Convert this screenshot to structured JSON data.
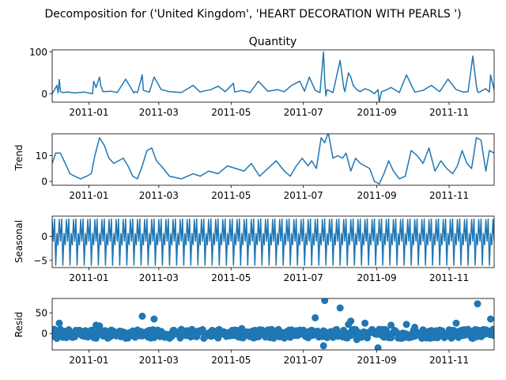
{
  "figure": {
    "suptitle": "Decomposition for ('United Kingdom', 'HEART DECORATION WITH PEARLS ')"
  },
  "colors": {
    "line": "#1f77b4",
    "marker": "#1f77b4",
    "zero_line": "#000000",
    "axes": "#000000",
    "background": "#ffffff"
  },
  "chart_data": [
    {
      "type": "line",
      "title": "Quantity",
      "ylabel": "",
      "xlim": [
        "2010-12-01",
        "2011-12-09"
      ],
      "ylim": [
        -20,
        105
      ],
      "yticks": [
        0,
        100
      ],
      "ytick_labels": [
        "0",
        "100"
      ],
      "xticks": [
        "2011-01-01",
        "2011-03-01",
        "2011-05-01",
        "2011-07-01",
        "2011-09-01",
        "2011-11-01"
      ],
      "xtick_labels": [
        "2011-01",
        "2011-03",
        "2011-05",
        "2011-07",
        "2011-09",
        "2011-11"
      ],
      "grid": false,
      "series": [
        {
          "x": [
            "2010-12-01",
            "2010-12-03",
            "2010-12-05",
            "2010-12-06",
            "2010-12-07",
            "2010-12-08",
            "2010-12-10",
            "2010-12-14",
            "2010-12-20",
            "2010-12-28",
            "2011-01-04",
            "2011-01-05",
            "2011-01-07",
            "2011-01-10",
            "2011-01-11",
            "2011-01-13",
            "2011-01-20",
            "2011-01-25",
            "2011-02-01",
            "2011-02-08",
            "2011-02-09",
            "2011-02-11",
            "2011-02-15",
            "2011-02-16",
            "2011-02-21",
            "2011-02-25",
            "2011-03-03",
            "2011-03-10",
            "2011-03-20",
            "2011-03-30",
            "2011-04-05",
            "2011-04-07",
            "2011-04-14",
            "2011-04-20",
            "2011-04-26",
            "2011-05-03",
            "2011-05-04",
            "2011-05-10",
            "2011-05-17",
            "2011-05-24",
            "2011-06-01",
            "2011-06-09",
            "2011-06-15",
            "2011-06-21",
            "2011-06-28",
            "2011-07-02",
            "2011-07-06",
            "2011-07-11",
            "2011-07-15",
            "2011-07-18",
            "2011-07-19",
            "2011-07-20",
            "2011-07-21",
            "2011-07-26",
            "2011-08-01",
            "2011-08-04",
            "2011-08-05",
            "2011-08-08",
            "2011-08-10",
            "2011-08-12",
            "2011-08-15",
            "2011-08-18",
            "2011-08-22",
            "2011-08-26",
            "2011-08-30",
            "2011-09-02",
            "2011-09-03",
            "2011-09-05",
            "2011-09-08",
            "2011-09-13",
            "2011-09-20",
            "2011-09-26",
            "2011-10-03",
            "2011-10-10",
            "2011-10-17",
            "2011-10-24",
            "2011-10-31",
            "2011-11-07",
            "2011-11-13",
            "2011-11-17",
            "2011-11-21",
            "2011-11-24",
            "2011-11-25",
            "2011-11-26",
            "2011-11-29",
            "2011-12-02",
            "2011-12-05",
            "2011-12-06",
            "2011-12-09"
          ],
          "y": [
            0,
            10,
            20,
            2,
            34,
            5,
            3,
            4,
            2,
            4,
            0,
            30,
            15,
            40,
            20,
            5,
            6,
            3,
            35,
            2,
            5,
            3,
            45,
            8,
            4,
            40,
            10,
            5,
            3,
            20,
            4,
            6,
            10,
            18,
            5,
            25,
            4,
            8,
            3,
            30,
            6,
            10,
            5,
            20,
            30,
            6,
            40,
            8,
            3,
            100,
            30,
            -5,
            10,
            3,
            80,
            15,
            5,
            50,
            40,
            20,
            10,
            5,
            12,
            8,
            0,
            10,
            -20,
            5,
            8,
            15,
            3,
            45,
            4,
            8,
            20,
            5,
            35,
            10,
            4,
            5,
            90,
            20,
            5,
            3,
            8,
            12,
            4,
            45,
            10
          ]
        }
      ]
    },
    {
      "type": "line",
      "title": "",
      "ylabel": "Trend",
      "xlim": [
        "2010-12-01",
        "2011-12-09"
      ],
      "ylim": [
        -1.5,
        18.5
      ],
      "yticks": [
        0,
        10
      ],
      "ytick_labels": [
        "0",
        "10"
      ],
      "xticks": [
        "2011-01-01",
        "2011-03-01",
        "2011-05-01",
        "2011-07-01",
        "2011-09-01",
        "2011-11-01"
      ],
      "xtick_labels": [
        "2011-01",
        "2011-03",
        "2011-05",
        "2011-07",
        "2011-09",
        "2011-11"
      ],
      "grid": false,
      "series": [
        {
          "x": [
            "2010-12-01",
            "2010-12-04",
            "2010-12-08",
            "2010-12-12",
            "2010-12-16",
            "2010-12-20",
            "2010-12-25",
            "2010-12-30",
            "2011-01-03",
            "2011-01-06",
            "2011-01-10",
            "2011-01-14",
            "2011-01-18",
            "2011-01-22",
            "2011-01-26",
            "2011-01-30",
            "2011-02-03",
            "2011-02-07",
            "2011-02-11",
            "2011-02-15",
            "2011-02-19",
            "2011-02-23",
            "2011-02-27",
            "2011-03-03",
            "2011-03-10",
            "2011-03-20",
            "2011-03-30",
            "2011-04-05",
            "2011-04-12",
            "2011-04-20",
            "2011-04-28",
            "2011-05-05",
            "2011-05-12",
            "2011-05-18",
            "2011-05-25",
            "2011-06-01",
            "2011-06-08",
            "2011-06-15",
            "2011-06-20",
            "2011-06-25",
            "2011-06-30",
            "2011-07-05",
            "2011-07-08",
            "2011-07-12",
            "2011-07-16",
            "2011-07-19",
            "2011-07-22",
            "2011-07-26",
            "2011-07-30",
            "2011-08-03",
            "2011-08-06",
            "2011-08-10",
            "2011-08-14",
            "2011-08-18",
            "2011-08-22",
            "2011-08-26",
            "2011-08-30",
            "2011-09-03",
            "2011-09-07",
            "2011-09-11",
            "2011-09-15",
            "2011-09-20",
            "2011-09-25",
            "2011-09-30",
            "2011-10-05",
            "2011-10-10",
            "2011-10-15",
            "2011-10-20",
            "2011-10-25",
            "2011-10-30",
            "2011-11-04",
            "2011-11-08",
            "2011-11-12",
            "2011-11-16",
            "2011-11-20",
            "2011-11-24",
            "2011-11-28",
            "2011-12-02",
            "2011-12-05",
            "2011-12-09"
          ],
          "y": [
            7,
            11,
            11,
            7,
            3,
            2,
            1,
            2,
            3,
            10,
            17,
            14,
            9,
            7,
            8,
            9,
            6,
            2,
            1,
            6,
            12,
            13,
            8,
            6,
            2,
            1,
            3,
            2,
            4,
            3,
            6,
            5,
            4,
            7,
            2,
            5,
            8,
            4,
            2,
            6,
            9,
            6,
            8,
            5,
            17,
            15,
            19,
            9,
            10,
            9,
            11,
            4,
            9,
            7,
            6,
            5,
            0,
            -1,
            3,
            8,
            4,
            1,
            2,
            12,
            10,
            7,
            13,
            4,
            8,
            5,
            3,
            6,
            12,
            7,
            5,
            17,
            16,
            4,
            12,
            11
          ]
        }
      ]
    },
    {
      "type": "line",
      "title": "",
      "ylabel": "Seasonal",
      "xlim": [
        "2010-12-01",
        "2011-12-09"
      ],
      "ylim": [
        -6.5,
        4.2
      ],
      "yticks": [
        -5,
        0
      ],
      "ytick_labels": [
        "−5",
        "0"
      ],
      "xticks": [
        "2011-01-01",
        "2011-03-01",
        "2011-05-01",
        "2011-07-01",
        "2011-09-01",
        "2011-11-01"
      ],
      "xtick_labels": [
        "2011-01",
        "2011-03",
        "2011-05",
        "2011-07",
        "2011-09",
        "2011-11"
      ],
      "grid": false,
      "period_days": 6,
      "pattern": [
        3.5,
        -1,
        3.6,
        -6,
        0.6,
        -1.8
      ]
    },
    {
      "type": "scatter",
      "title": "",
      "ylabel": "Resid",
      "xlim": [
        "2010-12-01",
        "2011-12-09"
      ],
      "ylim": [
        -40,
        85
      ],
      "yticks": [
        0,
        50
      ],
      "ytick_labels": [
        "0",
        "50"
      ],
      "xticks": [
        "2011-01-01",
        "2011-03-01",
        "2011-05-01",
        "2011-07-01",
        "2011-09-01",
        "2011-11-01"
      ],
      "xtick_labels": [
        "2011-01",
        "2011-03",
        "2011-05",
        "2011-07",
        "2011-09",
        "2011-11"
      ],
      "grid": false,
      "zero_line": true,
      "series": [
        {
          "x": [
            "2010-12-01",
            "2010-12-03",
            "2010-12-05",
            "2010-12-07",
            "2010-12-10",
            "2010-12-14",
            "2010-12-20",
            "2010-12-28",
            "2011-01-05",
            "2011-01-07",
            "2011-01-10",
            "2011-01-13",
            "2011-01-20",
            "2011-02-01",
            "2011-02-09",
            "2011-02-15",
            "2011-02-21",
            "2011-02-25",
            "2011-03-03",
            "2011-03-10",
            "2011-03-20",
            "2011-03-30",
            "2011-04-07",
            "2011-04-14",
            "2011-04-20",
            "2011-05-03",
            "2011-05-10",
            "2011-05-24",
            "2011-06-09",
            "2011-06-21",
            "2011-06-28",
            "2011-07-06",
            "2011-07-11",
            "2011-07-18",
            "2011-07-19",
            "2011-07-21",
            "2011-08-01",
            "2011-08-05",
            "2011-08-08",
            "2011-08-10",
            "2011-08-15",
            "2011-08-22",
            "2011-09-02",
            "2011-09-03",
            "2011-09-08",
            "2011-09-13",
            "2011-09-26",
            "2011-10-03",
            "2011-10-17",
            "2011-10-31",
            "2011-11-07",
            "2011-11-17",
            "2011-11-21",
            "2011-11-25",
            "2011-11-29",
            "2011-12-02",
            "2011-12-06",
            "2011-12-09"
          ],
          "y": [
            2,
            10,
            -12,
            25,
            -5,
            4,
            -8,
            3,
            -10,
            20,
            18,
            -6,
            8,
            -3,
            -8,
            42,
            -2,
            35,
            5,
            -4,
            10,
            -6,
            4,
            -7,
            8,
            -5,
            12,
            -8,
            6,
            -4,
            8,
            5,
            38,
            -30,
            80,
            -10,
            62,
            -5,
            22,
            30,
            -15,
            25,
            -35,
            10,
            -8,
            20,
            22,
            15,
            -10,
            -5,
            25,
            10,
            -12,
            72,
            -5,
            5,
            35,
            8
          ]
        },
        {
          "note": "",
          "dense_band": [
            -12,
            10
          ]
        }
      ]
    }
  ]
}
